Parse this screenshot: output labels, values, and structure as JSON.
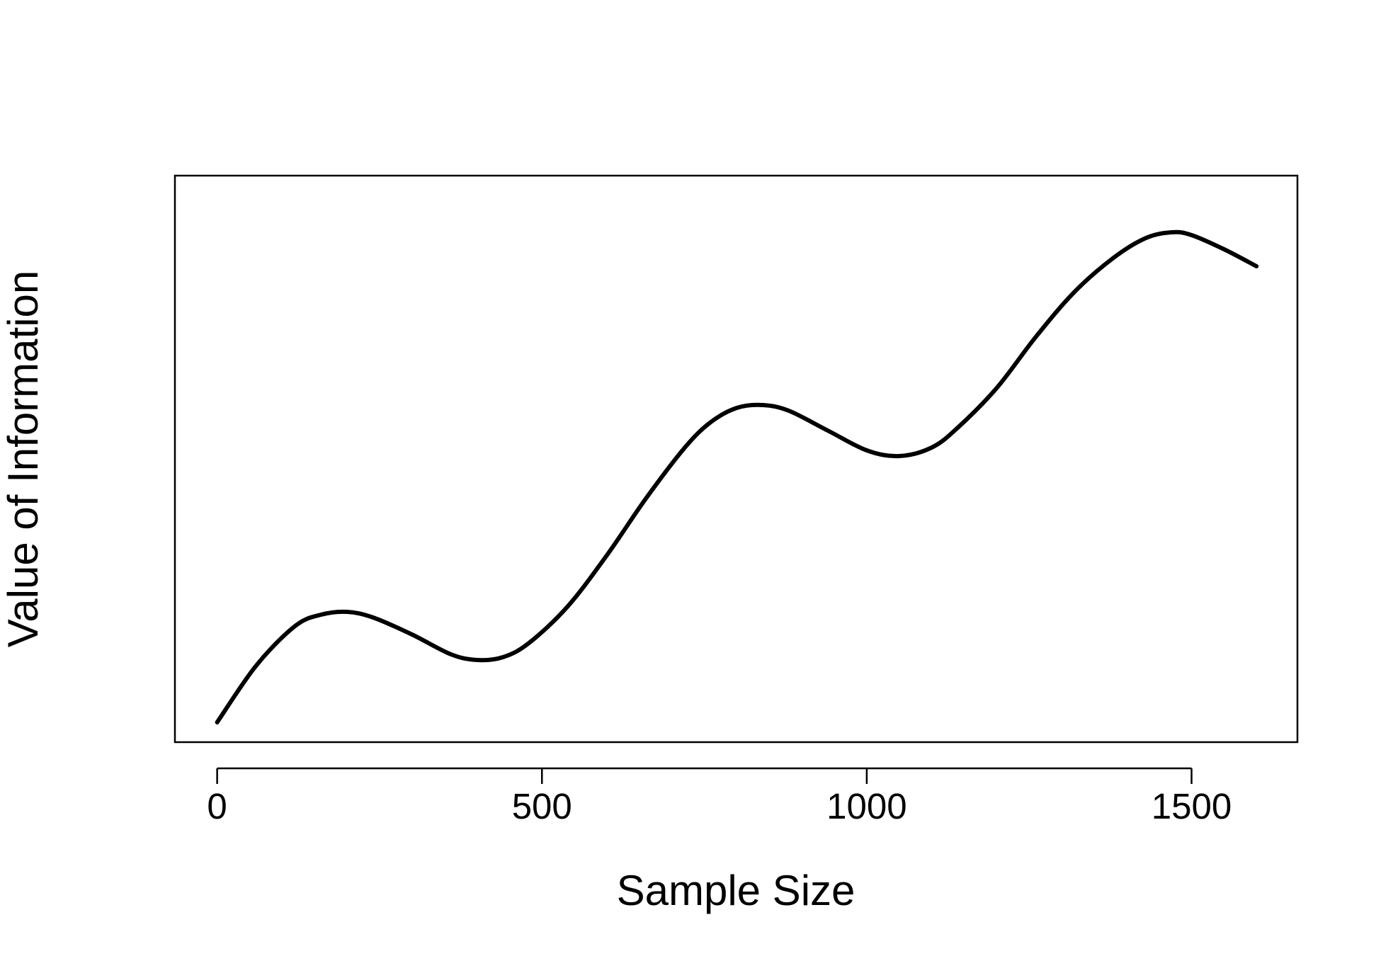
{
  "chart_data": {
    "type": "line",
    "title": "",
    "xlabel": "Sample Size",
    "ylabel": "Value of Information",
    "xlim": [
      -65,
      1663
    ],
    "ylim": [
      0,
      1
    ],
    "x_ticks": [
      0,
      500,
      1000,
      1500
    ],
    "x_tick_labels": [
      "0",
      "500",
      "1000",
      "1500"
    ],
    "y_ticks_shown": false,
    "grid": false,
    "legend": "none",
    "line_color": "#000000",
    "series": [
      {
        "x": [
          0,
          60,
          120,
          160,
          200,
          240,
          300,
          360,
          400,
          440,
          480,
          540,
          600,
          660,
          720,
          760,
          800,
          840,
          880,
          940,
          1000,
          1050,
          1100,
          1140,
          1200,
          1260,
          1320,
          1380,
          1430,
          1470,
          1500,
          1550,
          1600
        ],
        "values": [
          0.035,
          0.135,
          0.205,
          0.225,
          0.23,
          0.22,
          0.19,
          0.155,
          0.145,
          0.15,
          0.175,
          0.24,
          0.33,
          0.43,
          0.52,
          0.565,
          0.59,
          0.595,
          0.585,
          0.55,
          0.515,
          0.505,
          0.52,
          0.555,
          0.625,
          0.715,
          0.795,
          0.855,
          0.89,
          0.9,
          0.895,
          0.87,
          0.84
        ]
      }
    ]
  }
}
